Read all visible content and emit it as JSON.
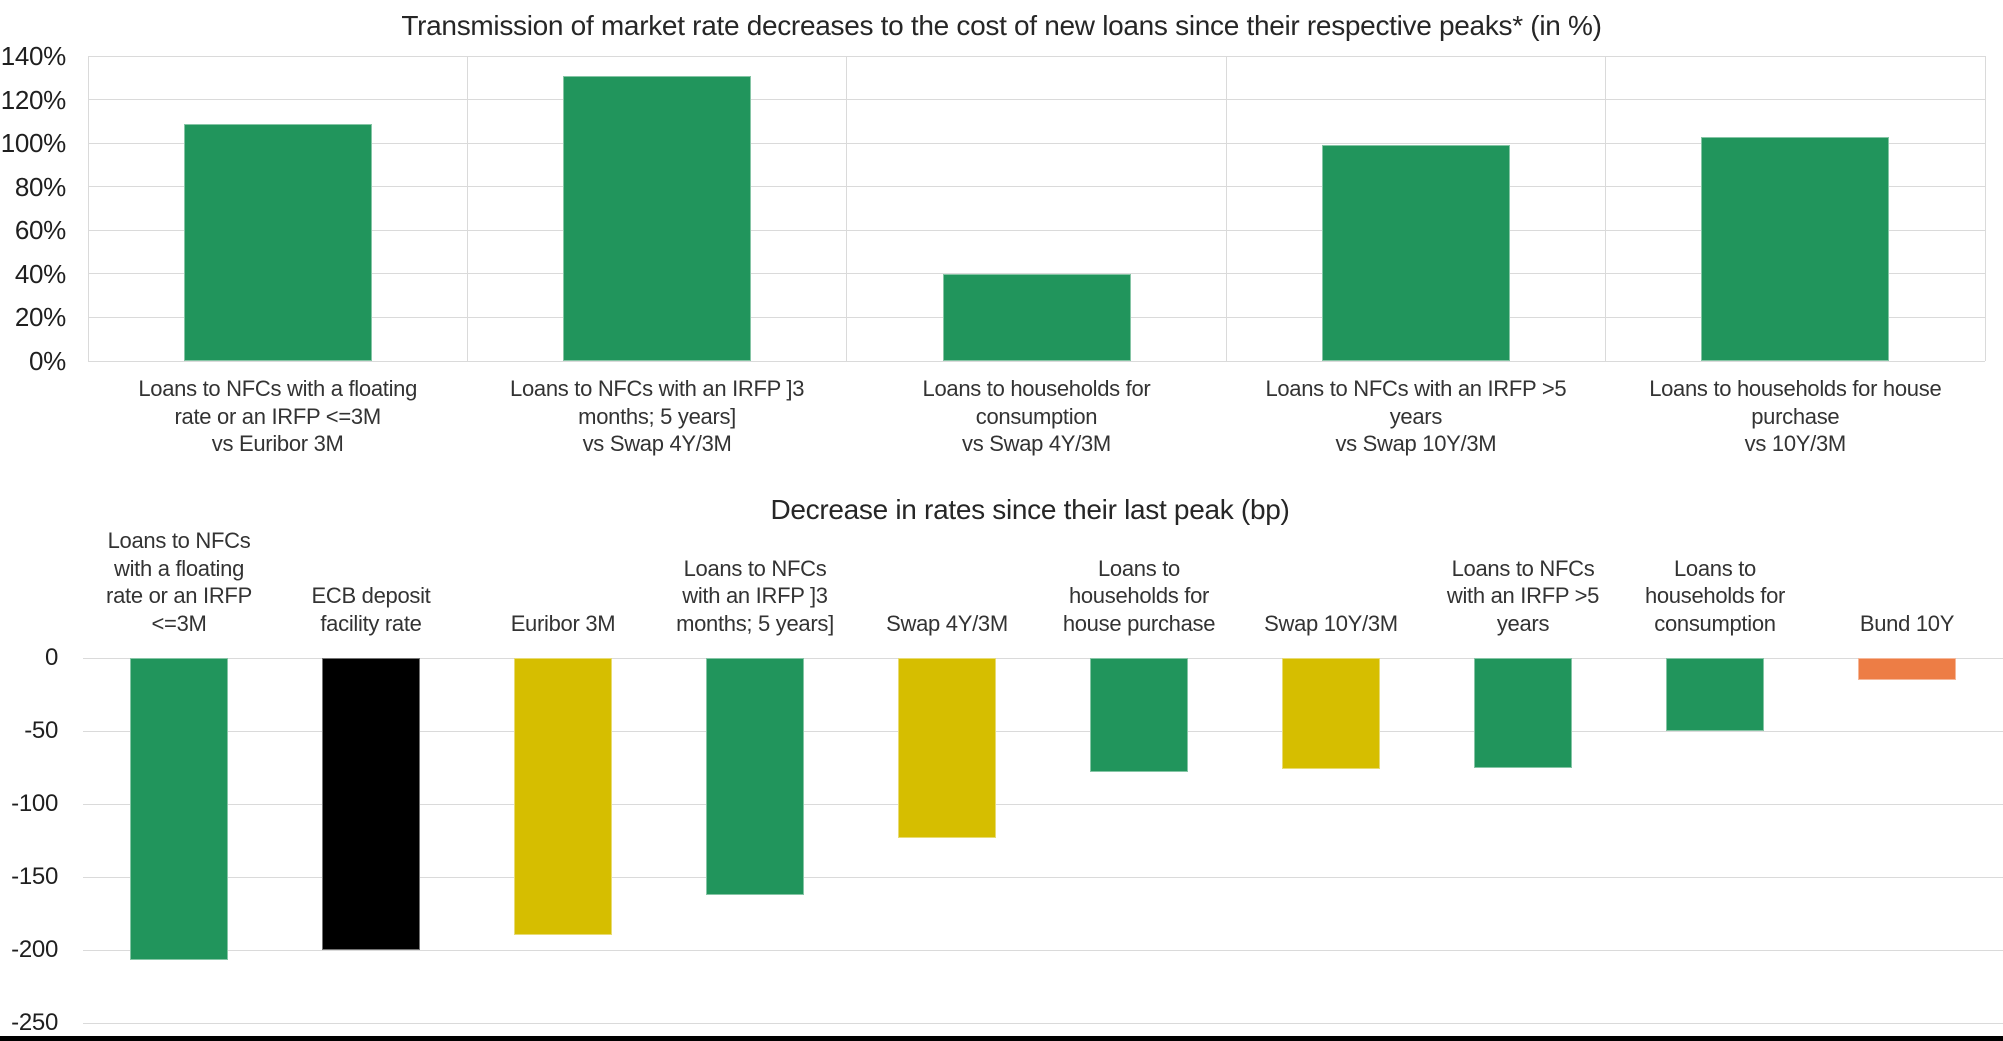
{
  "colors": {
    "green": "#21955C",
    "yellow": "#D6BE00",
    "orange": "#ED7D45",
    "black": "#000000",
    "gridline": "#DADADA",
    "tick_text": "#1F1F1F",
    "label_text": "#333333",
    "title_text": "#262626",
    "bottom_border": "#000000"
  },
  "chart_data": [
    {
      "type": "bar",
      "title": "Transmission of market rate decreases to the cost of new loans since their respective peaks* (in %)",
      "categories": [
        "Loans to NFCs with a floating\nrate or an IRFP <=3M\nvs Euribor 3M",
        "Loans to NFCs with an IRFP ]3\nmonths; 5 years]\nvs Swap 4Y/3M",
        "Loans to households for\nconsumption\nvs Swap 4Y/3M",
        "Loans to NFCs with an IRFP >5\nyears\nvs Swap 10Y/3M",
        "Loans to households for house\npurchase\nvs 10Y/3M"
      ],
      "values": [
        109,
        131,
        40,
        99,
        103
      ],
      "bar_colors": [
        "#21955C",
        "#21955C",
        "#21955C",
        "#21955C",
        "#21955C"
      ],
      "unit": "%",
      "ylim": [
        0,
        140
      ],
      "ytick_step": 20,
      "ytick_labels": [
        "0%",
        "20%",
        "40%",
        "60%",
        "80%",
        "100%",
        "120%",
        "140%"
      ],
      "grid": "horizontal and vertical category boundaries",
      "legend": "none"
    },
    {
      "type": "bar",
      "title": "Decrease in rates since their last peak (bp)",
      "categories": [
        "Loans to NFCs\nwith a floating\nrate or an IRFP\n<=3M",
        "ECB deposit\nfacility rate",
        "Euribor 3M",
        "Loans to NFCs\nwith an IRFP ]3\nmonths; 5 years]",
        "Swap 4Y/3M",
        "Loans to\nhouseholds for\nhouse purchase",
        "Swap 10Y/3M",
        "Loans to NFCs\nwith an IRFP >5\nyears",
        "Loans to\nhouseholds for\nconsumption",
        "Bund 10Y"
      ],
      "values": [
        -207,
        -200,
        -190,
        -162,
        -123,
        -78,
        -76,
        -75,
        -50,
        -15
      ],
      "bar_colors": [
        "#21955C",
        "#000000",
        "#D6BE00",
        "#21955C",
        "#D6BE00",
        "#21955C",
        "#D6BE00",
        "#21955C",
        "#21955C",
        "#ED7D45"
      ],
      "unit": "bp",
      "ylim": [
        -250,
        0
      ],
      "ytick_step": 50,
      "ytick_labels": [
        "0",
        "-50",
        "-100",
        "-150",
        "-200",
        "-250"
      ],
      "grid": "horizontal only",
      "legend": "none",
      "category_label_position": "above zero line"
    }
  ]
}
